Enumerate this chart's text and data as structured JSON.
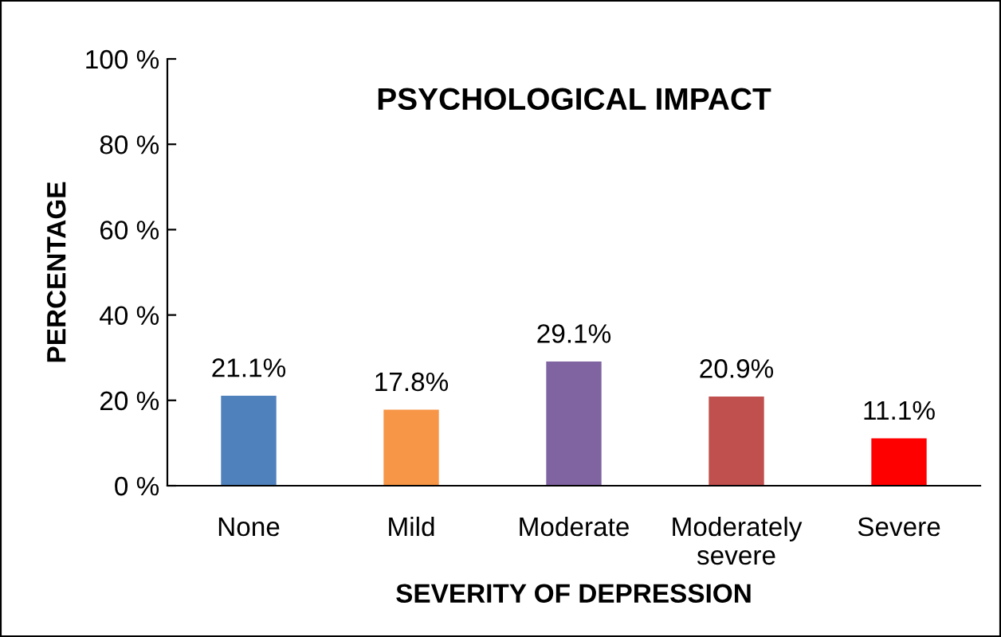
{
  "chart_data": {
    "type": "bar",
    "title": "PSYCHOLOGICAL IMPACT",
    "xlabel": "SEVERITY OF DEPRESSION",
    "ylabel": "PERCENTAGE",
    "categories": [
      "None",
      "Mild",
      "Moderate",
      "Moderately severe",
      "Severe"
    ],
    "values": [
      21.1,
      17.8,
      29.1,
      20.9,
      11.1
    ],
    "colors": [
      "#4f81bd",
      "#f79646",
      "#8064a2",
      "#c0504d",
      "#ff0000"
    ],
    "value_labels": [
      "21.1%",
      "17.8%",
      "29.1%",
      "20.9%",
      "11.1%"
    ],
    "ylim": [
      0,
      100
    ],
    "yticks": [
      {
        "value": 0,
        "label": "0 %"
      },
      {
        "value": 20,
        "label": "20 %"
      },
      {
        "value": 40,
        "label": "40 %"
      },
      {
        "value": 60,
        "label": "60 %"
      },
      {
        "value": 80,
        "label": "80 %"
      },
      {
        "value": 100,
        "label": "100 %"
      }
    ],
    "grid": false,
    "legend": false
  }
}
